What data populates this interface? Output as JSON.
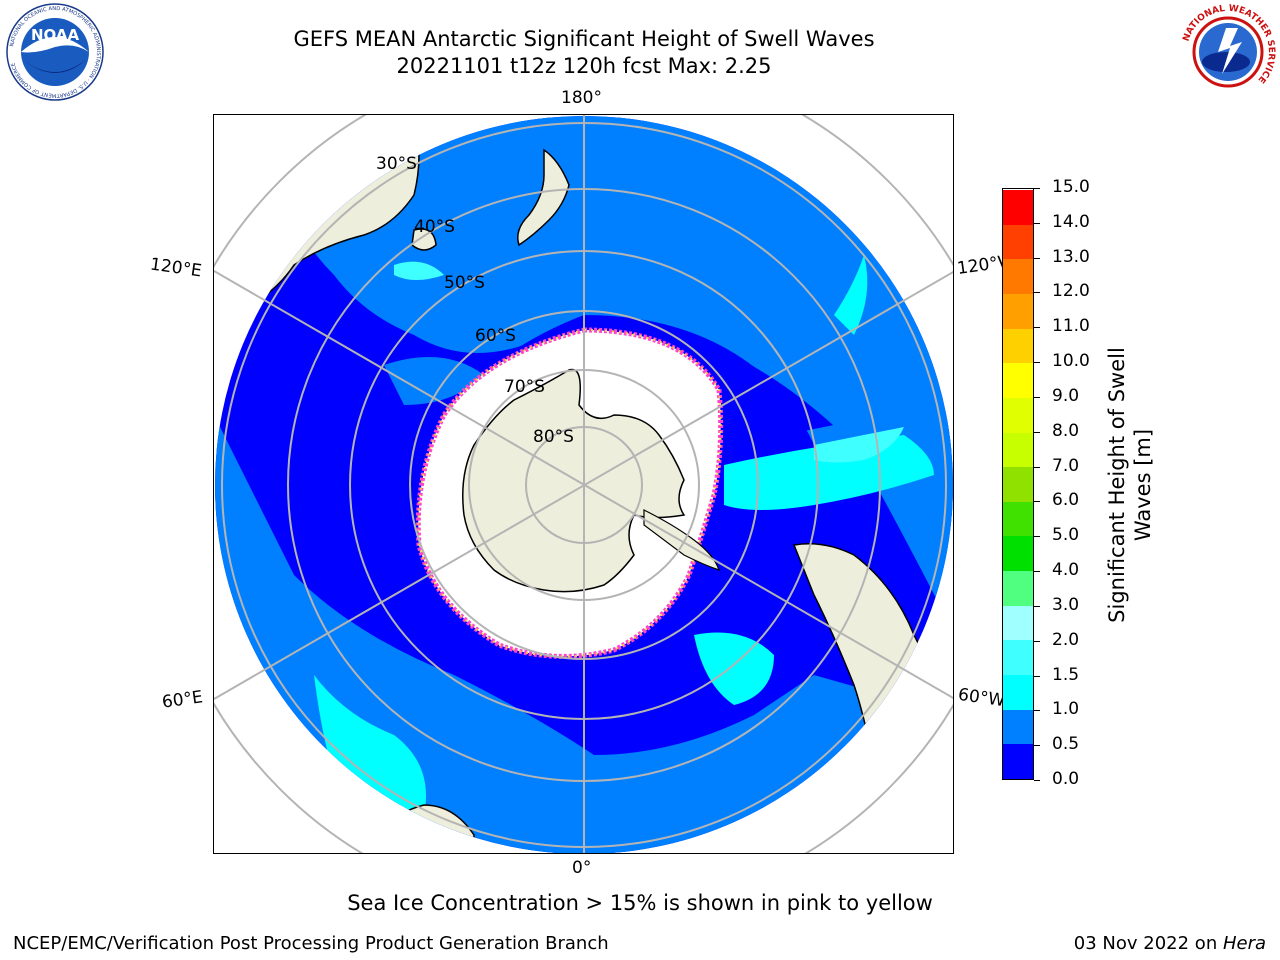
{
  "header": {
    "title_line1": "GEFS MEAN Antarctic Significant Height of Swell Waves",
    "title_line2": "20221101 t12z 120h fcst   Max: 2.25"
  },
  "logos": {
    "left": "noaa-logo",
    "left_text": "NOAA",
    "left_ring_text": "NATIONAL OCEANIC AND ATMOSPHERIC ADMINISTRATION · U.S. DEPARTMENT OF COMMERCE",
    "right": "nws-logo",
    "right_ring_text": "NATIONAL WEATHER SERVICE"
  },
  "map": {
    "projection": "south-polar-stereographic",
    "lon_labels": {
      "top": "180°",
      "bottom": "0°",
      "upper_left": "120°E",
      "upper_right": "120°W",
      "lower_left": "60°E",
      "lower_right": "60°W"
    },
    "lat_labels": [
      "30°S",
      "40°S",
      "50°S",
      "60°S",
      "70°S",
      "80°S"
    ],
    "colors": {
      "land": "#eeeedc",
      "ice": "#ffffff",
      "ice_edge_pink": "#ff44cc",
      "ice_edge_yellow": "#ffcc44",
      "grid": "#b4b4b4",
      "swell_0_0_5": "#0000ff",
      "swell_0_5_1_0": "#0080ff",
      "swell_1_0_1_5": "#00ffff",
      "swell_1_5_2_0": "#40ffff"
    }
  },
  "colorbar": {
    "label_line1": "Significant Height of Swell",
    "label_line2": "Waves [m]",
    "ticks": [
      "0.0",
      "0.5",
      "1.0",
      "1.5",
      "2.0",
      "3.0",
      "4.0",
      "5.0",
      "6.0",
      "7.0",
      "8.0",
      "9.0",
      "10.0",
      "11.0",
      "12.0",
      "13.0",
      "14.0",
      "15.0"
    ],
    "colors": [
      "#0000ff",
      "#0080ff",
      "#00ffff",
      "#40ffff",
      "#a0ffff",
      "#50ff80",
      "#00e000",
      "#40e000",
      "#90e000",
      "#c8ff00",
      "#e0ff00",
      "#ffff00",
      "#ffd000",
      "#ffa000",
      "#ff7800",
      "#ff4000",
      "#ff0000"
    ]
  },
  "notes": {
    "ice_note": "Sea Ice Concentration > 15% is shown in pink to yellow"
  },
  "footer": {
    "left": "NCEP/EMC/Verification Post Processing Product Generation Branch",
    "right_prefix": "03 Nov 2022 on ",
    "right_machine": "Hera"
  }
}
